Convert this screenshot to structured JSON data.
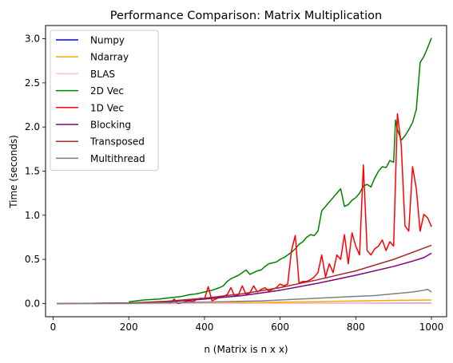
{
  "chart_data": {
    "type": "line",
    "title": "Performance Comparison: Matrix Multiplication",
    "xlabel": "n (Matrix is n x x)",
    "ylabel": "Time (seconds)",
    "xlim": [
      -20,
      1040
    ],
    "ylim": [
      -0.15,
      3.15
    ],
    "xticks": [
      0,
      200,
      400,
      600,
      800,
      1000
    ],
    "yticks": [
      0.0,
      0.5,
      1.0,
      1.5,
      2.0,
      2.5,
      3.0
    ],
    "xtick_labels": [
      "0",
      "200",
      "400",
      "600",
      "800",
      "1000"
    ],
    "ytick_labels": [
      "0.0",
      "0.5",
      "1.0",
      "1.5",
      "2.0",
      "2.5",
      "3.0"
    ],
    "grid": false,
    "legend_position": "top-left",
    "series": [
      {
        "name": "Numpy",
        "color": "#0000ff",
        "x": [
          10,
          200,
          400,
          600,
          800,
          1000
        ],
        "y": [
          0.0,
          0.0,
          0.001,
          0.002,
          0.003,
          0.004
        ]
      },
      {
        "name": "Ndarray",
        "color": "#ffa500",
        "x": [
          10,
          200,
          300,
          400,
          500,
          600,
          700,
          800,
          900,
          1000
        ],
        "y": [
          0.0,
          0.001,
          0.003,
          0.006,
          0.01,
          0.015,
          0.021,
          0.028,
          0.035,
          0.04
        ]
      },
      {
        "name": "BLAS",
        "color": "#ffc0cb",
        "x": [
          10,
          200,
          400,
          600,
          800,
          1000
        ],
        "y": [
          0.0,
          0.0,
          0.001,
          0.001,
          0.002,
          0.003
        ]
      },
      {
        "name": "2D Vec",
        "color": "#008000",
        "x": [
          200,
          220,
          240,
          260,
          280,
          300,
          320,
          340,
          360,
          380,
          400,
          420,
          440,
          450,
          460,
          470,
          480,
          490,
          500,
          510,
          520,
          530,
          540,
          550,
          560,
          570,
          580,
          590,
          600,
          610,
          620,
          630,
          640,
          650,
          660,
          670,
          680,
          690,
          700,
          710,
          720,
          730,
          740,
          750,
          760,
          770,
          780,
          790,
          800,
          810,
          820,
          830,
          840,
          850,
          860,
          870,
          880,
          890,
          900,
          905,
          910,
          920,
          930,
          940,
          950,
          960,
          970,
          980,
          990,
          1000
        ],
        "y": [
          0.02,
          0.03,
          0.04,
          0.045,
          0.05,
          0.06,
          0.07,
          0.08,
          0.1,
          0.11,
          0.13,
          0.15,
          0.18,
          0.2,
          0.25,
          0.28,
          0.3,
          0.32,
          0.35,
          0.38,
          0.33,
          0.35,
          0.37,
          0.38,
          0.42,
          0.45,
          0.46,
          0.47,
          0.5,
          0.52,
          0.55,
          0.58,
          0.62,
          0.67,
          0.7,
          0.75,
          0.78,
          0.77,
          0.82,
          1.05,
          1.1,
          1.15,
          1.2,
          1.25,
          1.3,
          1.1,
          1.12,
          1.17,
          1.2,
          1.25,
          1.33,
          1.35,
          1.32,
          1.42,
          1.5,
          1.55,
          1.54,
          1.62,
          1.6,
          2.08,
          1.97,
          1.85,
          1.9,
          1.97,
          2.05,
          2.2,
          2.73,
          2.8,
          2.9,
          3.01
        ]
      },
      {
        "name": "1D Vec",
        "color": "#ff0000",
        "x": [
          10,
          200,
          300,
          310,
          320,
          330,
          340,
          350,
          360,
          370,
          380,
          390,
          400,
          410,
          420,
          430,
          440,
          450,
          460,
          470,
          480,
          490,
          500,
          510,
          520,
          530,
          540,
          550,
          560,
          570,
          580,
          590,
          600,
          610,
          620,
          630,
          640,
          650,
          660,
          670,
          680,
          690,
          700,
          710,
          720,
          730,
          740,
          750,
          760,
          770,
          780,
          790,
          800,
          810,
          820,
          830,
          840,
          850,
          860,
          870,
          880,
          890,
          900,
          910,
          920,
          930,
          940,
          950,
          960,
          970,
          980,
          990,
          1000
        ],
        "y": [
          0.0,
          0.005,
          0.01,
          0.005,
          0.05,
          0.0,
          0.01,
          0.02,
          0.03,
          0.02,
          0.05,
          0.06,
          0.05,
          0.19,
          0.03,
          0.05,
          0.07,
          0.08,
          0.1,
          0.18,
          0.08,
          0.1,
          0.2,
          0.1,
          0.12,
          0.2,
          0.13,
          0.16,
          0.18,
          0.14,
          0.16,
          0.18,
          0.22,
          0.2,
          0.22,
          0.6,
          0.77,
          0.23,
          0.25,
          0.25,
          0.27,
          0.3,
          0.35,
          0.55,
          0.3,
          0.45,
          0.35,
          0.55,
          0.5,
          0.78,
          0.45,
          0.8,
          0.65,
          0.55,
          1.57,
          0.6,
          0.55,
          0.62,
          0.65,
          0.72,
          0.6,
          0.7,
          0.65,
          2.15,
          1.8,
          0.88,
          0.82,
          1.55,
          1.3,
          0.82,
          1.01,
          0.97,
          0.87
        ]
      },
      {
        "name": "Blocking",
        "color": "#800080",
        "x": [
          10,
          100,
          200,
          300,
          400,
          500,
          600,
          700,
          800,
          900,
          950,
          980,
          1000
        ],
        "y": [
          0.0,
          0.001,
          0.005,
          0.02,
          0.05,
          0.09,
          0.15,
          0.23,
          0.32,
          0.42,
          0.48,
          0.52,
          0.57
        ]
      },
      {
        "name": "Transposed",
        "color": "#a52a2a",
        "x": [
          10,
          100,
          200,
          300,
          400,
          500,
          600,
          700,
          800,
          900,
          1000
        ],
        "y": [
          0.0,
          0.001,
          0.006,
          0.025,
          0.06,
          0.11,
          0.18,
          0.27,
          0.37,
          0.5,
          0.66
        ]
      },
      {
        "name": "Multithread",
        "color": "#808080",
        "x": [
          10,
          100,
          200,
          300,
          400,
          500,
          550,
          600,
          650,
          700,
          750,
          800,
          850,
          900,
          950,
          980,
          990,
          1000
        ],
        "y": [
          0.0,
          0.0,
          0.002,
          0.008,
          0.015,
          0.025,
          0.03,
          0.04,
          0.05,
          0.06,
          0.07,
          0.08,
          0.09,
          0.11,
          0.13,
          0.15,
          0.16,
          0.13
        ]
      }
    ]
  }
}
